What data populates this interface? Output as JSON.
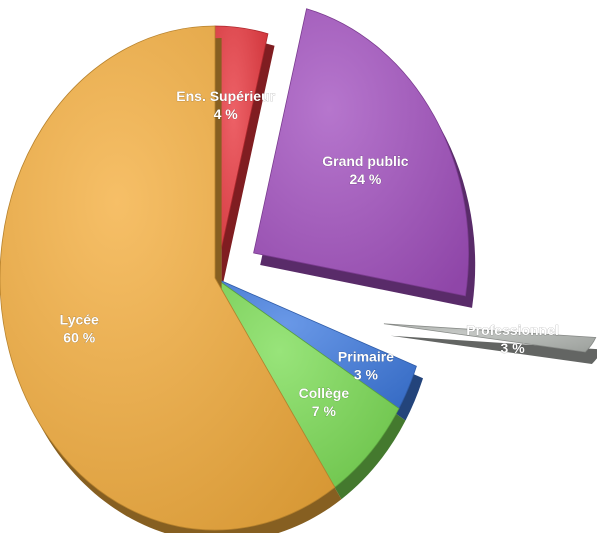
{
  "chart_data": {
    "type": "pie",
    "style": "3d-exploded",
    "slices": [
      {
        "label": "Ens. Supérieur",
        "value": 4,
        "display": "4 %",
        "color": "#e8353c",
        "exploded": false
      },
      {
        "label": "Grand public",
        "value": 24,
        "display": "24 %",
        "color": "#a24fbf",
        "exploded": true
      },
      {
        "label": "Professionnel",
        "value": 3,
        "display": "3 %",
        "color": "#b4b8b4",
        "exploded": true
      },
      {
        "label": "Primaire",
        "value": 3,
        "display": "3 %",
        "color": "#3f7be0",
        "exploded": false
      },
      {
        "label": "Collège",
        "value": 7,
        "display": "7 %",
        "color": "#7bdc54",
        "exploded": false
      },
      {
        "label": "Lycée",
        "value": 60,
        "display": "60 %",
        "color": "#f4ad3c",
        "exploded": false
      }
    ]
  }
}
